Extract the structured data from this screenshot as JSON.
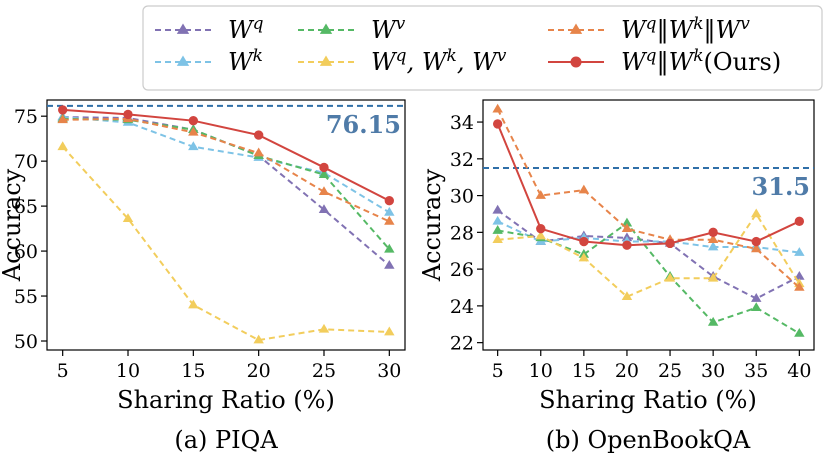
{
  "legend": [
    {
      "key": "wq",
      "label": "W^q",
      "color": "#8172b3",
      "marker": "triangle",
      "style": "dashed"
    },
    {
      "key": "wk",
      "label": "W^k",
      "color": "#7ec3e6",
      "marker": "triangle",
      "style": "dashed"
    },
    {
      "key": "wv",
      "label": "W^v",
      "color": "#55b965",
      "marker": "triangle",
      "style": "dashed"
    },
    {
      "key": "wqwkwv",
      "label": "W^q, W^k, W^v",
      "color": "#f2cd5c",
      "marker": "triangle",
      "style": "dashed"
    },
    {
      "key": "concat3",
      "label": "W^q‖W^k‖W^v",
      "color": "#e7844a",
      "marker": "triangle",
      "style": "dashed"
    },
    {
      "key": "ours",
      "label": "W^q‖W^k(Ours)",
      "color": "#d2453f",
      "marker": "circle",
      "style": "solid"
    }
  ],
  "chart_data": [
    {
      "type": "line",
      "caption": "(a) PIQA",
      "xlabel": "Sharing Ratio (%)",
      "ylabel": "Accuracy",
      "x": [
        5,
        10,
        15,
        20,
        25,
        30
      ],
      "xlim": [
        3.8,
        31.2
      ],
      "ylim": [
        49,
        76.8
      ],
      "yticks": [
        50,
        55,
        60,
        65,
        70,
        75
      ],
      "reference": {
        "value": 76.15,
        "label": "76.15",
        "color": "#2f6fa8"
      },
      "series": [
        {
          "key": "wq",
          "values": [
            74.9,
            74.8,
            73.5,
            70.6,
            64.6,
            58.4
          ]
        },
        {
          "key": "wk",
          "values": [
            74.9,
            74.3,
            71.6,
            70.4,
            68.7,
            64.3
          ]
        },
        {
          "key": "wv",
          "values": [
            74.7,
            74.6,
            73.5,
            70.6,
            68.5,
            60.2
          ]
        },
        {
          "key": "wqwkwv",
          "values": [
            71.6,
            63.6,
            54.0,
            50.1,
            51.3,
            51.0
          ]
        },
        {
          "key": "concat3",
          "values": [
            74.6,
            74.7,
            73.2,
            70.9,
            66.6,
            63.3
          ]
        },
        {
          "key": "ours",
          "values": [
            75.7,
            75.2,
            74.5,
            72.9,
            69.3,
            65.6
          ]
        }
      ]
    },
    {
      "type": "line",
      "caption": "(b) OpenBookQA",
      "xlabel": "Sharing Ratio (%)",
      "ylabel": "Accuracy",
      "x": [
        5,
        10,
        15,
        20,
        25,
        30,
        35,
        40
      ],
      "xlim": [
        3.3,
        41.7
      ],
      "ylim": [
        21.6,
        35.2
      ],
      "yticks": [
        22,
        24,
        26,
        28,
        30,
        32,
        34
      ],
      "reference": {
        "value": 31.5,
        "label": "31.5",
        "color": "#2f6fa8"
      },
      "series": [
        {
          "key": "wq",
          "values": [
            29.2,
            27.5,
            27.8,
            27.7,
            27.4,
            25.6,
            24.4,
            25.6
          ]
        },
        {
          "key": "wk",
          "values": [
            28.6,
            27.5,
            27.7,
            27.5,
            27.5,
            27.2,
            27.2,
            26.9
          ]
        },
        {
          "key": "wv",
          "values": [
            28.1,
            27.7,
            26.8,
            28.5,
            25.6,
            23.1,
            23.9,
            22.5
          ]
        },
        {
          "key": "wqwkwv",
          "values": [
            27.6,
            27.8,
            26.6,
            24.5,
            25.5,
            25.5,
            29.0,
            25.2
          ]
        },
        {
          "key": "concat3",
          "values": [
            34.7,
            30.0,
            30.3,
            28.2,
            27.6,
            27.6,
            27.1,
            25.0
          ]
        },
        {
          "key": "ours",
          "values": [
            33.9,
            28.2,
            27.5,
            27.3,
            27.4,
            28.0,
            27.5,
            28.6
          ]
        }
      ]
    }
  ]
}
